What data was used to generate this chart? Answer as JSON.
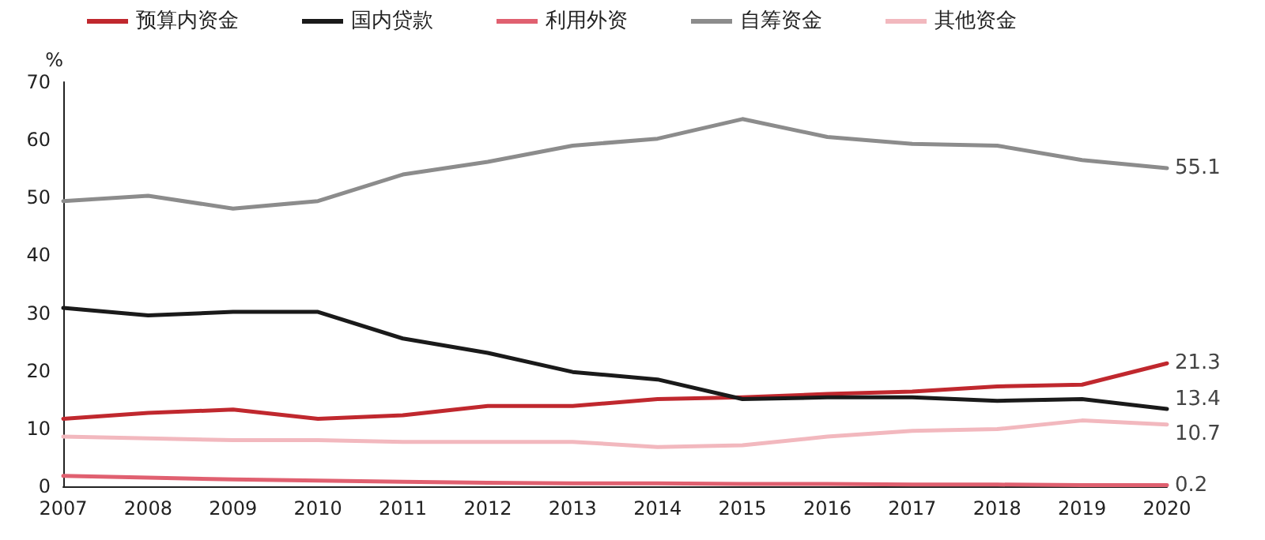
{
  "chart_data": {
    "type": "line",
    "ylabel": "%",
    "categories": [
      "2007",
      "2008",
      "2009",
      "2010",
      "2011",
      "2012",
      "2013",
      "2014",
      "2015",
      "2016",
      "2017",
      "2018",
      "2019",
      "2020"
    ],
    "series": [
      {
        "name": "预算内资金",
        "color": "#c0282e",
        "values": [
          11.7,
          12.7,
          13.3,
          11.7,
          12.3,
          13.9,
          13.9,
          15.1,
          15.4,
          16,
          16.4,
          17.3,
          17.6,
          21.3
        ],
        "value_labels": [
          null,
          null,
          null,
          null,
          null,
          null,
          null,
          null,
          null,
          null,
          null,
          null,
          null,
          "21.3"
        ]
      },
      {
        "name": "国内贷款",
        "color": "#1a1a1a",
        "values": [
          30.9,
          29.6,
          30.2,
          30.2,
          25.6,
          23.1,
          19.8,
          18.5,
          15.1,
          15.4,
          15.4,
          14.8,
          15.1,
          13.4
        ],
        "value_labels": [
          null,
          null,
          null,
          null,
          null,
          null,
          null,
          null,
          null,
          null,
          null,
          null,
          null,
          "13.4"
        ]
      },
      {
        "name": "利用外资",
        "color": "#e06070",
        "values": [
          1.8,
          1.5,
          1.2,
          1.0,
          0.8,
          0.6,
          0.5,
          0.5,
          0.4,
          0.4,
          0.3,
          0.3,
          0.2,
          0.2
        ],
        "value_labels": [
          null,
          null,
          null,
          null,
          null,
          null,
          null,
          null,
          null,
          null,
          null,
          null,
          null,
          "0.2"
        ]
      },
      {
        "name": "自筹资金",
        "color": "#8c8c8c",
        "values": [
          49.4,
          50.3,
          48.1,
          49.4,
          54,
          56.2,
          59,
          60.2,
          63.6,
          60.5,
          59.3,
          59,
          56.5,
          55.1
        ],
        "value_labels": [
          null,
          null,
          null,
          null,
          null,
          null,
          null,
          null,
          null,
          null,
          null,
          null,
          null,
          "55.1"
        ]
      },
      {
        "name": "其他资金",
        "color": "#f2b8be",
        "values": [
          8.6,
          8.3,
          8,
          8,
          7.7,
          7.7,
          7.7,
          6.8,
          7.1,
          8.6,
          9.6,
          9.9,
          11.4,
          10.7
        ],
        "value_labels": [
          null,
          null,
          null,
          null,
          null,
          null,
          null,
          null,
          null,
          null,
          null,
          null,
          null,
          "10.7"
        ]
      }
    ],
    "ylim": [
      0,
      70
    ],
    "yticks": [
      0,
      10,
      20,
      30,
      40,
      50,
      60,
      70
    ],
    "legend": "top",
    "grid": false,
    "marker": "none",
    "line_style": "solid"
  }
}
